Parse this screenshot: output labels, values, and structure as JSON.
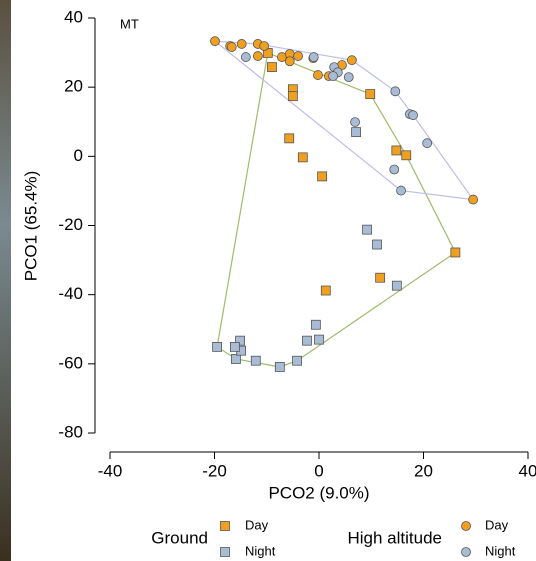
{
  "chart_data": {
    "type": "scatter",
    "annotation": "MT",
    "x_label": "PCO2 (9.0%)",
    "y_label": "PCO1 (65.4%)",
    "xlim": [
      -40,
      40
    ],
    "xticks": [
      -40,
      -20,
      0,
      20,
      40
    ],
    "ylim": [
      -80,
      40
    ],
    "yticks": [
      -80,
      -60,
      -40,
      -20,
      0,
      20,
      40
    ],
    "groups": [
      {
        "name": "Ground",
        "hull_color": "#9fbb6a",
        "marker": "square",
        "series": [
          {
            "name": "Day",
            "color": "#f0a020",
            "x": [
              -9.8,
              -9.0,
              -5.0,
              -5.0,
              -5.7,
              -3.1,
              0.6,
              9.8,
              14.8,
              16.7,
              26.1,
              11.7,
              1.3
            ],
            "y": [
              29.9,
              25.8,
              19.4,
              17.4,
              5.2,
              -0.3,
              -5.8,
              18.0,
              1.7,
              0.3,
              -27.8,
              -35.1,
              -38.8
            ]
          },
          {
            "name": "Night",
            "color": "#a9bcd6",
            "x": [
              7.1,
              9.2,
              11.1,
              14.9,
              -0.6,
              -2.3,
              0.0,
              -4.2,
              -7.5,
              -12.1,
              -15.9,
              -15.1,
              -14.9,
              -16.1,
              -19.5
            ],
            "y": [
              7.0,
              -21.2,
              -25.5,
              -37.4,
              -48.7,
              -53.3,
              -53.0,
              -59.1,
              -60.9,
              -59.1,
              -58.6,
              -53.3,
              -56.2,
              -55.1,
              -55.1
            ]
          }
        ]
      },
      {
        "name": "High altitude",
        "hull_color": "#bdbde8",
        "marker": "circle",
        "series": [
          {
            "name": "Day",
            "color": "#f0a020",
            "x": [
              -19.9,
              -17.0,
              -16.7,
              -14.8,
              -11.7,
              -10.5,
              -11.7,
              -7.1,
              -5.6,
              -5.6,
              -4.0,
              -1.1,
              -0.2,
              4.4,
              6.3,
              1.9,
              29.5
            ],
            "y": [
              33.3,
              31.9,
              31.6,
              32.5,
              32.5,
              31.9,
              29.0,
              28.7,
              29.6,
              27.5,
              29.0,
              28.4,
              23.5,
              26.4,
              27.8,
              23.2,
              -12.5
            ]
          },
          {
            "name": "Night",
            "color": "#a9bcd6",
            "x": [
              -14.0,
              -1.0,
              2.9,
              3.6,
              5.7,
              2.7,
              14.6,
              17.4,
              18.0,
              20.7,
              14.4,
              15.7,
              6.9
            ],
            "y": [
              28.7,
              28.7,
              25.8,
              24.3,
              22.9,
              23.2,
              18.8,
              12.2,
              11.9,
              3.8,
              -3.8,
              -9.9,
              9.9
            ]
          }
        ]
      }
    ]
  }
}
